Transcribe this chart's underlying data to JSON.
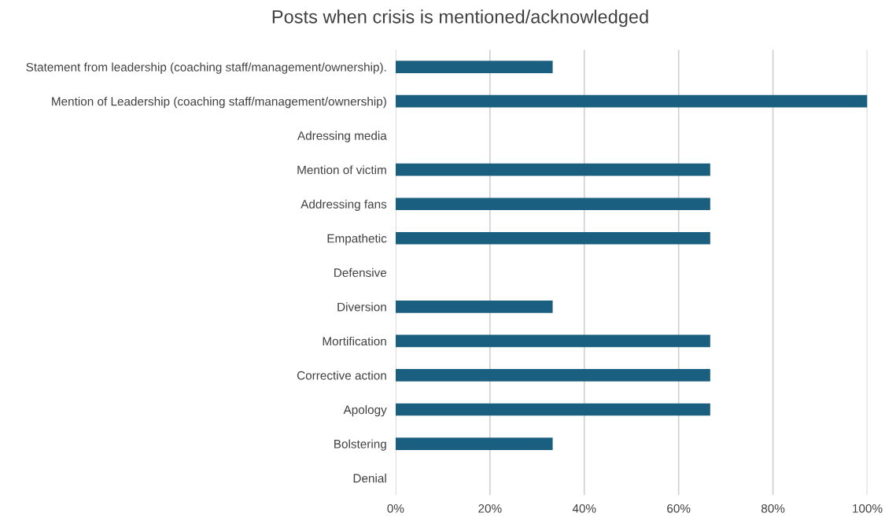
{
  "chart_data": {
    "type": "bar",
    "orientation": "horizontal",
    "title": "Posts when crisis is mentioned/acknowledged",
    "categories": [
      "Statement from leadership (coaching staff/management/ownership).",
      "Mention of Leadership (coaching staff/management/ownership)",
      "Adressing media",
      "Mention of victim",
      "Addressing fans",
      "Empathetic",
      "Defensive",
      "Diversion",
      "Mortification",
      "Corrective action",
      "Apology",
      "Bolstering",
      "Denial"
    ],
    "values": [
      33.3,
      100,
      0,
      66.7,
      66.7,
      66.7,
      0,
      33.3,
      66.7,
      66.7,
      66.7,
      33.3,
      0
    ],
    "color": "#1b5f80",
    "xlim": [
      0,
      100
    ],
    "xticks": [
      {
        "value": 0,
        "label": "0%"
      },
      {
        "value": 20,
        "label": "20%"
      },
      {
        "value": 40,
        "label": "40%"
      },
      {
        "value": 60,
        "label": "60%"
      },
      {
        "value": 80,
        "label": "80%"
      },
      {
        "value": 100,
        "label": "100%"
      }
    ],
    "grid": "x"
  }
}
